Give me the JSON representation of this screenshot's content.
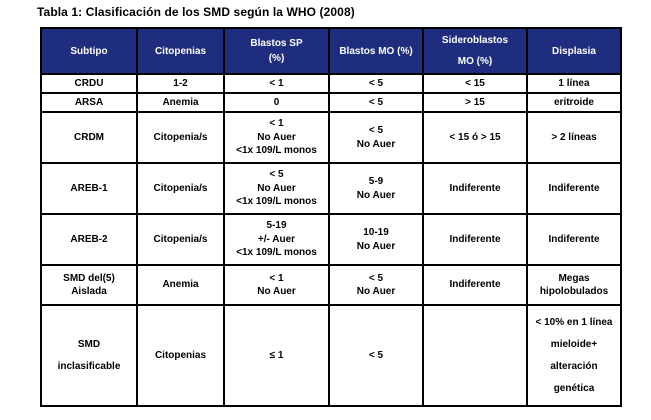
{
  "title": "Tabla 1: Clasificación de los SMD según la WHO (2008)",
  "colors": {
    "header_bg": "#1e2d7d",
    "header_text": "#ffffff",
    "body_text": "#000000",
    "border": "#000000"
  },
  "table": {
    "headers": [
      [
        "Subtipo"
      ],
      [
        "Citopenias"
      ],
      [
        "Blastos SP",
        "(%)"
      ],
      [
        "Blastos MO (%)"
      ],
      [
        "Sideroblastos",
        "MO (%)"
      ],
      [
        "Displasia"
      ]
    ],
    "rows": [
      {
        "cells": [
          [
            "CRDU"
          ],
          [
            "1-2"
          ],
          [
            "< 1"
          ],
          [
            "< 5"
          ],
          [
            "< 15"
          ],
          [
            "1 línea"
          ]
        ]
      },
      {
        "cells": [
          [
            "ARSA"
          ],
          [
            "Anemia"
          ],
          [
            "0"
          ],
          [
            "< 5"
          ],
          [
            "> 15"
          ],
          [
            "eritroide"
          ]
        ]
      },
      {
        "cells": [
          [
            "CRDM"
          ],
          [
            "Citopenia/s"
          ],
          [
            "< 1",
            "No Auer",
            "<1x 109/L monos"
          ],
          [
            "< 5",
            "No Auer"
          ],
          [
            "< 15 ó > 15"
          ],
          [
            "> 2 líneas"
          ]
        ]
      },
      {
        "cells": [
          [
            "AREB-1"
          ],
          [
            "Citopenia/s"
          ],
          [
            "< 5",
            "No Auer",
            "<1x 109/L monos"
          ],
          [
            "5-9",
            "No Auer"
          ],
          [
            "Indiferente"
          ],
          [
            "Indiferente"
          ]
        ]
      },
      {
        "cells": [
          [
            "AREB-2"
          ],
          [
            "Citopenia/s"
          ],
          [
            "5-19",
            "+/- Auer",
            "<1x 109/L monos"
          ],
          [
            "10-19",
            "No Auer"
          ],
          [
            "Indiferente"
          ],
          [
            "Indiferente"
          ]
        ]
      },
      {
        "cells": [
          [
            "SMD del(5)",
            "Aislada"
          ],
          [
            "Anemia"
          ],
          [
            "< 1",
            "No Auer"
          ],
          [
            "< 5",
            "No Auer"
          ],
          [
            "Indiferente"
          ],
          [
            "Megas",
            "hipolobulados"
          ]
        ]
      },
      {
        "cells": [
          [
            "SMD",
            "inclasificable"
          ],
          [
            "Citopenias"
          ],
          [
            "≤ 1"
          ],
          [
            "< 5"
          ],
          [
            ""
          ],
          [
            "< 10% en 1 línea",
            "mieloide+",
            "alteración",
            "genética"
          ]
        ]
      }
    ]
  }
}
